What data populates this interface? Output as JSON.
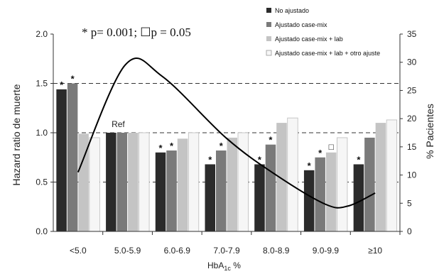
{
  "chart_data": {
    "type": "bar",
    "annotation": "* p= 0.001; ☐p = 0.05",
    "xlabel": "HbA",
    "xlabel_sub": "1c",
    "xlabel_suffix": " %",
    "ylabel_left": "Hazard ratio de muerte",
    "ylabel_right": "% Pacientes",
    "categories": [
      "<5.0",
      "5.0-5.9",
      "6.0-6.9",
      "7.0-7.9",
      "8.0-8.9",
      "9.0-9.9",
      "≥10"
    ],
    "left_axis": {
      "min": 0,
      "max": 2.0,
      "ticks": [
        "0.0",
        "0.5",
        "1.0",
        "1.5",
        "2.0"
      ]
    },
    "right_axis": {
      "min": 0,
      "max": 35,
      "ticks": [
        "0",
        "5",
        "10",
        "15",
        "20",
        "25",
        "30",
        "35"
      ]
    },
    "reference_lines": [
      0.5,
      1.0,
      1.5
    ],
    "reference_label": "Ref",
    "reference_category": 1,
    "series": [
      {
        "name": "No ajustado",
        "color": "#2b2b2b",
        "values": [
          1.44,
          1.0,
          0.8,
          0.68,
          0.68,
          0.62,
          0.68
        ],
        "markers": [
          "*",
          "",
          "*",
          "*",
          "*",
          "*",
          "*"
        ]
      },
      {
        "name": "Ajustado case-mix",
        "color": "#7a7a7a",
        "values": [
          1.5,
          1.0,
          0.82,
          0.82,
          0.88,
          0.75,
          0.95
        ],
        "markers": [
          "*",
          "",
          "*",
          "*",
          "*",
          "*",
          ""
        ]
      },
      {
        "name": "Ajustado case-mix + lab",
        "color": "#c4c4c4",
        "values": [
          0.99,
          1.0,
          0.94,
          0.95,
          1.1,
          0.8,
          1.1
        ],
        "markers": [
          "",
          "",
          "",
          "",
          "",
          "☐",
          ""
        ]
      },
      {
        "name": "Ajustado case-mix + lab + otro ajuste",
        "color": "#f6f6f6",
        "values": [
          0.95,
          1.0,
          1.0,
          1.0,
          1.15,
          0.95,
          1.13
        ],
        "markers": [
          "",
          "",
          "",
          "",
          "",
          "",
          ""
        ]
      }
    ],
    "patients_line": {
      "axis": "right",
      "points": [
        {
          "x": 0,
          "y": 10.5
        },
        {
          "x": 0.95,
          "y": 29.5
        },
        {
          "x": 1.7,
          "y": 27.5
        },
        {
          "x": 3.0,
          "y": 16.5
        },
        {
          "x": 4.0,
          "y": 10.0
        },
        {
          "x": 5.0,
          "y": 4.8
        },
        {
          "x": 5.45,
          "y": 4.5
        },
        {
          "x": 6.0,
          "y": 6.8
        }
      ]
    }
  }
}
